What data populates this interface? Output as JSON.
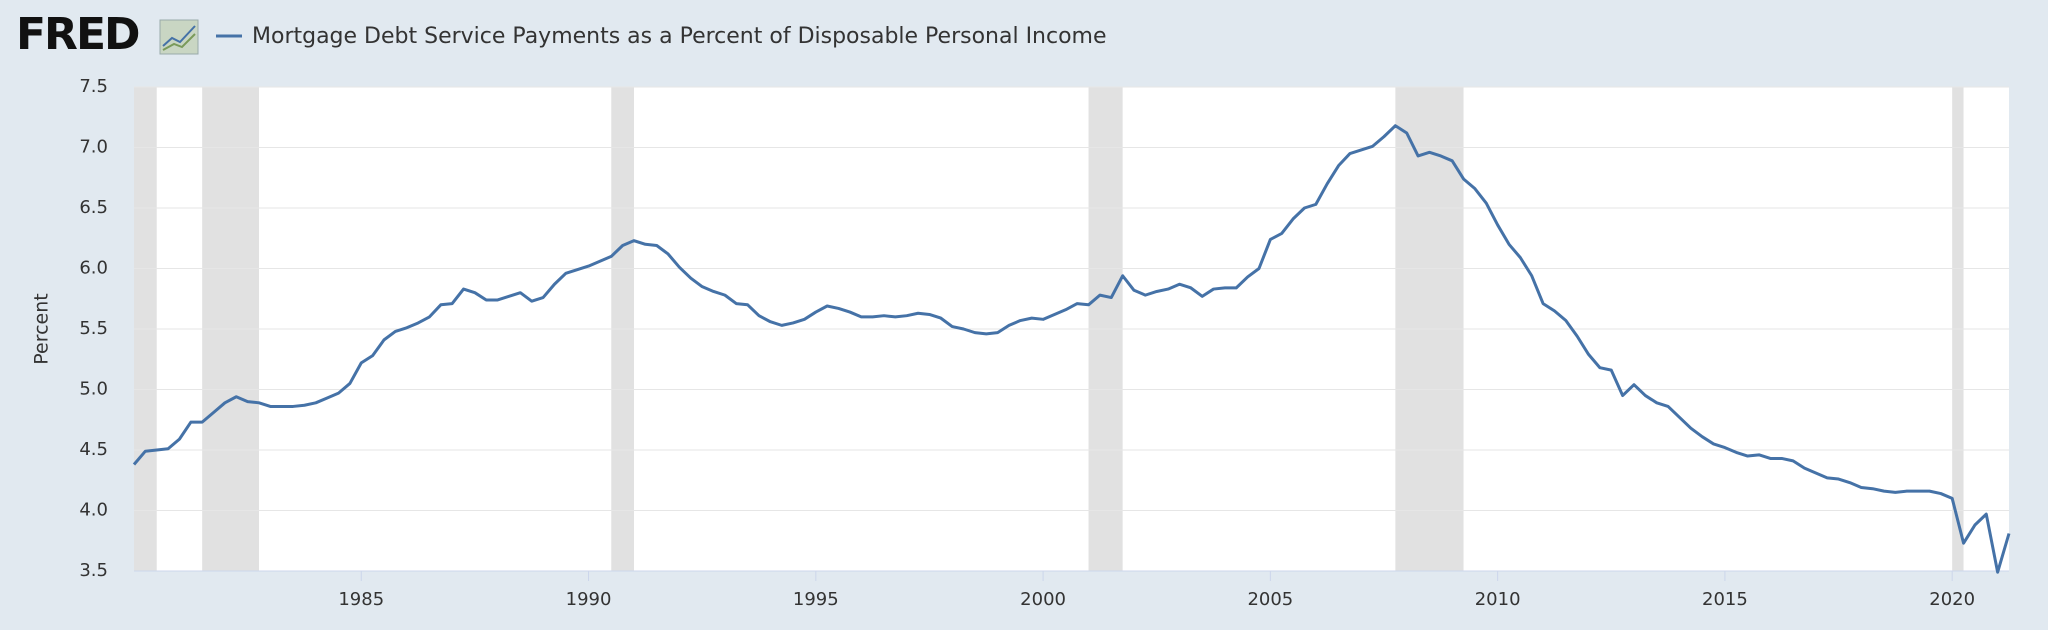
{
  "chart_data": {
    "type": "line",
    "brand": "FRED",
    "title": "Mortgage Debt Service Payments as a Percent of Disposable Personal Income",
    "y_label": "Percent",
    "xlim": [
      1980,
      2021.25
    ],
    "ylim": [
      3.5,
      7.5
    ],
    "xticks": [
      1985,
      1990,
      1995,
      2000,
      2005,
      2010,
      2015,
      2020
    ],
    "yticks": [
      3.5,
      {
        "value": 4,
        "label": "4.0"
      },
      4.5,
      {
        "value": 5,
        "label": "5.0"
      },
      5.5,
      {
        "value": 6,
        "label": "6.0"
      },
      6.5,
      {
        "value": 7,
        "label": "7.0"
      },
      7.5
    ],
    "grid": true,
    "recessions": [
      [
        1980,
        1980.5
      ],
      [
        1981.5,
        1982.75
      ],
      [
        1990.5,
        1991
      ],
      [
        2001,
        2001.75
      ],
      [
        2007.75,
        2009.25
      ],
      [
        2020,
        2020.25
      ]
    ],
    "x": [
      1980,
      1980.25,
      1980.5,
      1980.75,
      1981,
      1981.25,
      1981.5,
      1981.75,
      1982,
      1982.25,
      1982.5,
      1982.75,
      1983,
      1983.25,
      1983.5,
      1983.75,
      1984,
      1984.25,
      1984.5,
      1984.75,
      1985,
      1985.25,
      1985.5,
      1985.75,
      1986,
      1986.25,
      1986.5,
      1986.75,
      1987,
      1987.25,
      1987.5,
      1987.75,
      1988,
      1988.25,
      1988.5,
      1988.75,
      1989,
      1989.25,
      1989.5,
      1989.75,
      1990,
      1990.25,
      1990.5,
      1990.75,
      1991,
      1991.25,
      1991.5,
      1991.75,
      1992,
      1992.25,
      1992.5,
      1992.75,
      1993,
      1993.25,
      1993.5,
      1993.75,
      1994,
      1994.25,
      1994.5,
      1994.75,
      1995,
      1995.25,
      1995.5,
      1995.75,
      1996,
      1996.25,
      1996.5,
      1996.75,
      1997,
      1997.25,
      1997.5,
      1997.75,
      1998,
      1998.25,
      1998.5,
      1998.75,
      1999,
      1999.25,
      1999.5,
      1999.75,
      2000,
      2000.25,
      2000.5,
      2000.75,
      2001,
      2001.25,
      2001.5,
      2001.75,
      2002,
      2002.25,
      2002.5,
      2002.75,
      2003,
      2003.25,
      2003.5,
      2003.75,
      2004,
      2004.25,
      2004.5,
      2004.75,
      2005,
      2005.25,
      2005.5,
      2005.75,
      2006,
      2006.25,
      2006.5,
      2006.75,
      2007,
      2007.25,
      2007.5,
      2007.75,
      2008,
      2008.25,
      2008.5,
      2008.75,
      2009,
      2009.25,
      2009.5,
      2009.75,
      2010,
      2010.25,
      2010.5,
      2010.75,
      2011,
      2011.25,
      2011.5,
      2011.75,
      2012,
      2012.25,
      2012.5,
      2012.75,
      2013,
      2013.25,
      2013.5,
      2013.75,
      2014,
      2014.25,
      2014.5,
      2014.75,
      2015,
      2015.25,
      2015.5,
      2015.75,
      2016,
      2016.25,
      2016.5,
      2016.75,
      2017,
      2017.25,
      2017.5,
      2017.75,
      2018,
      2018.25,
      2018.5,
      2018.75,
      2019,
      2019.25,
      2019.5,
      2019.75,
      2020,
      2020.25,
      2020.5,
      2020.75,
      2021,
      2021.25
    ],
    "series": [
      {
        "name": "Mortgage Debt Service Payments as a Percent of Disposable Personal Income",
        "color": "#4572a7",
        "values": [
          4.38,
          4.49,
          4.5,
          4.51,
          4.59,
          4.73,
          4.73,
          4.81,
          4.89,
          4.94,
          4.9,
          4.89,
          4.86,
          4.86,
          4.86,
          4.87,
          4.89,
          4.93,
          4.97,
          5.05,
          5.22,
          5.28,
          5.41,
          5.48,
          5.51,
          5.55,
          5.6,
          5.7,
          5.71,
          5.83,
          5.8,
          5.74,
          5.74,
          5.77,
          5.8,
          5.73,
          5.76,
          5.87,
          5.96,
          5.99,
          6.02,
          6.06,
          6.1,
          6.19,
          6.23,
          6.2,
          6.19,
          6.12,
          6.01,
          5.92,
          5.85,
          5.81,
          5.78,
          5.71,
          5.7,
          5.61,
          5.56,
          5.53,
          5.55,
          5.58,
          5.64,
          5.69,
          5.67,
          5.64,
          5.6,
          5.6,
          5.61,
          5.6,
          5.61,
          5.63,
          5.62,
          5.59,
          5.52,
          5.5,
          5.47,
          5.46,
          5.47,
          5.53,
          5.57,
          5.59,
          5.58,
          5.62,
          5.66,
          5.71,
          5.7,
          5.78,
          5.76,
          5.94,
          5.82,
          5.78,
          5.81,
          5.83,
          5.87,
          5.84,
          5.77,
          5.83,
          5.84,
          5.84,
          5.93,
          6.0,
          6.24,
          6.29,
          6.41,
          6.5,
          6.53,
          6.7,
          6.85,
          6.95,
          6.98,
          7.01,
          7.09,
          7.18,
          7.12,
          6.93,
          6.96,
          6.93,
          6.89,
          6.74,
          6.66,
          6.54,
          6.36,
          6.2,
          6.09,
          5.94,
          5.71,
          5.65,
          5.57,
          5.44,
          5.29,
          5.18,
          5.16,
          4.95,
          5.04,
          4.95,
          4.89,
          4.86,
          4.77,
          4.68,
          4.61,
          4.55,
          4.52,
          4.48,
          4.45,
          4.46,
          4.43,
          4.43,
          4.41,
          4.35,
          4.31,
          4.27,
          4.26,
          4.23,
          4.19,
          4.18,
          4.16,
          4.15,
          4.16,
          4.16,
          4.16,
          4.14,
          4.1,
          3.73,
          3.88,
          3.97,
          3.49,
          3.81
        ]
      }
    ]
  }
}
